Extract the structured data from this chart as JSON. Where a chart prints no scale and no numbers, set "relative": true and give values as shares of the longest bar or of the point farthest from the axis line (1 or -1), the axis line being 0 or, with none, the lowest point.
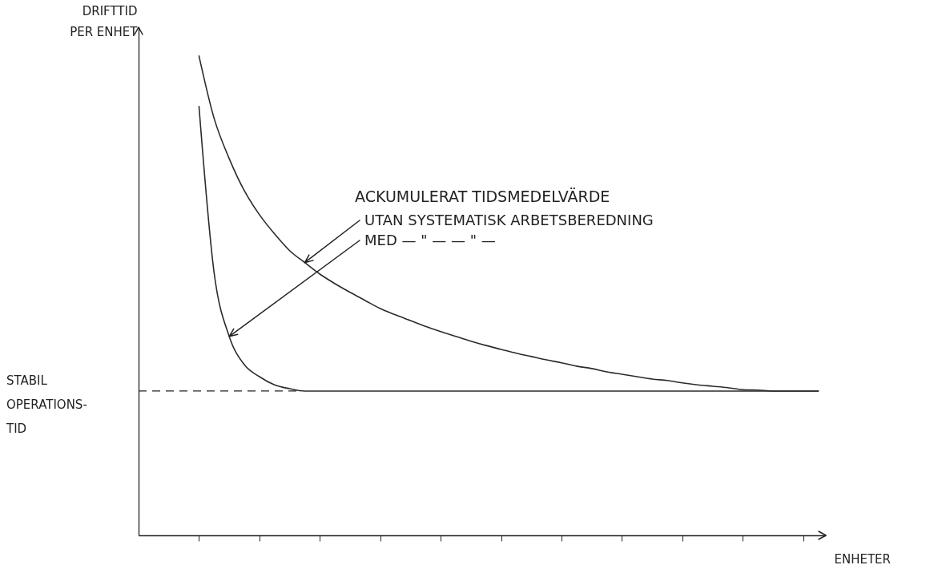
{
  "chart_data": {
    "type": "line",
    "relative": true,
    "tick_labels": false,
    "ylabel": "DRIFTTID\nPER ENHET",
    "xlabel": "ENHETER",
    "categories": [
      null,
      null,
      null,
      null,
      null,
      null,
      null,
      null,
      null,
      null,
      null,
      null,
      null,
      null,
      null,
      null,
      null,
      null,
      null,
      null,
      null,
      null,
      null,
      null,
      null,
      null,
      null,
      null,
      null,
      null,
      null,
      null,
      null,
      null,
      null,
      null,
      null,
      null,
      null,
      null,
      null,
      null
    ],
    "series": [
      {
        "color": "#2b2b2b",
        "values": [
          1,
          0.87,
          0.786,
          0.719,
          0.669,
          0.629,
          0.594,
          0.569,
          0.545,
          0.525,
          0.507,
          0.49,
          0.473,
          0.46,
          0.448,
          0.436,
          0.425,
          0.415,
          0.405,
          0.396,
          0.388,
          0.38,
          0.373,
          0.366,
          0.36,
          0.353,
          0.348,
          0.341,
          0.336,
          0.331,
          0.326,
          0.323,
          0.318,
          0.314,
          0.311,
          0.308,
          0.304,
          0.303,
          0.301,
          0.301,
          0.301,
          0.301
        ]
      },
      {
        "color": "#2b2b2b",
        "values": [
          0.895,
          0.548,
          0.415,
          0.356,
          0.331,
          0.314,
          0.306,
          0.301,
          0.301,
          0.301,
          0.301,
          0.301,
          0.301,
          0.301,
          0.301,
          0.301,
          0.301,
          0.301,
          0.301,
          0.301,
          0.301,
          0.301,
          0.301,
          0.301,
          0.301,
          0.301,
          0.301,
          0.301,
          0.301,
          0.301,
          0.301,
          0.301,
          0.301,
          0.301,
          0.301,
          0.301,
          0.301,
          0.301,
          0.301,
          0.301,
          0.301,
          0.301
        ]
      }
    ],
    "ref_lines": [
      {
        "axis": "y",
        "value": 0.301,
        "label": "STABIL\nOPERATIONS-\nTID",
        "line_style": "dashed"
      }
    ],
    "annotations": [
      "ACKUMULERAT TIDSMEDELVÄRDE",
      "UTAN SYSTEMATISK ARBETSBEREDNING",
      "MED  — \" —            — \" —"
    ]
  }
}
